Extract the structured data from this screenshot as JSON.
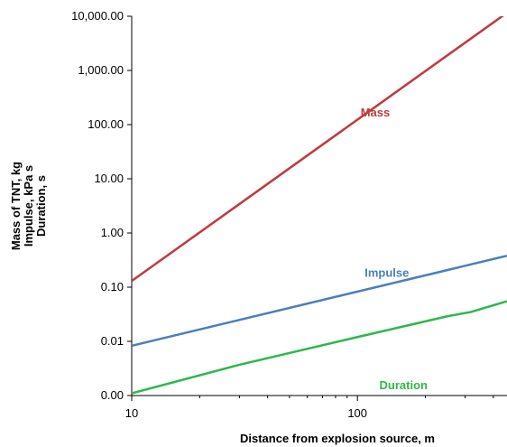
{
  "chart_data": {
    "type": "line",
    "xscale": "log",
    "yscale": "log",
    "xlim": [
      10,
      460
    ],
    "ylim": [
      0.001,
      10000
    ],
    "x_ticks": [
      10,
      100
    ],
    "x_tick_labels": [
      "10",
      "100"
    ],
    "y_ticks": [
      0.001,
      0.01,
      0.1,
      1,
      10,
      100,
      1000,
      10000
    ],
    "y_tick_labels": [
      "0.00",
      "0.01",
      "0.10",
      "1.00",
      "10.00",
      "100.00",
      "1,000.00",
      "10,000.00"
    ],
    "xlabel": "Distance from explosion source, m",
    "ylabel_lines": [
      "Mass of TNT, kg",
      "Impulse, kPa s",
      "Duration, s"
    ],
    "grid": false,
    "series": [
      {
        "name": "Mass",
        "color": "#c0393b",
        "x": [
          10,
          460
        ],
        "y": [
          0.13,
          11600
        ],
        "label_at": [
          120,
          140
        ]
      },
      {
        "name": "Impulse",
        "color": "#4a7ebf",
        "x": [
          10,
          460
        ],
        "y": [
          0.0083,
          0.38
        ],
        "label_at": [
          135,
          0.155
        ]
      },
      {
        "name": "Duration",
        "color": "#2db84a",
        "x": [
          10,
          30,
          100,
          250,
          320,
          460
        ],
        "y": [
          0.0011,
          0.0037,
          0.012,
          0.029,
          0.035,
          0.055
        ],
        "label_at": [
          160,
          0.0013
        ]
      }
    ]
  }
}
